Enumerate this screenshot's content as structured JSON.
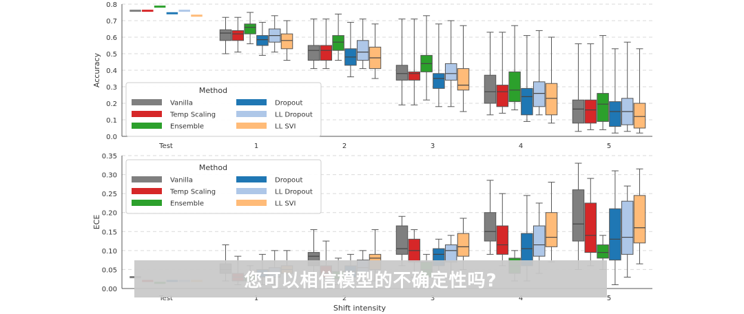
{
  "chart_data": [
    {
      "type": "boxplot",
      "title": "",
      "xlabel": "",
      "ylabel": "Accuracy",
      "ylim": [
        0,
        0.8
      ],
      "yticks": [
        "0.0",
        "0.1",
        "0.2",
        "0.3",
        "0.4",
        "0.5",
        "0.6",
        "0.7",
        "0.8"
      ],
      "categories": [
        "Test",
        "1",
        "2",
        "3",
        "4",
        "5"
      ],
      "grid": "horizontal dashed",
      "legend": {
        "title": "Method",
        "placement": "lower-left"
      },
      "series": [
        {
          "name": "Vanilla",
          "color": "#7f7f7f",
          "test": 0.76,
          "boxes": [
            [
              0.5,
              0.58,
              0.625,
              0.645,
              0.72
            ],
            [
              0.41,
              0.46,
              0.52,
              0.55,
              0.71
            ],
            [
              0.19,
              0.34,
              0.38,
              0.43,
              0.71
            ],
            [
              0.13,
              0.2,
              0.27,
              0.37,
              0.63
            ],
            [
              0.03,
              0.08,
              0.165,
              0.22,
              0.56
            ]
          ]
        },
        {
          "name": "Temp Scaling",
          "color": "#d62728",
          "test": 0.76,
          "boxes": [
            [
              0.51,
              0.58,
              0.62,
              0.64,
              0.72
            ],
            [
              0.41,
              0.46,
              0.52,
              0.55,
              0.71
            ],
            [
              0.19,
              0.34,
              0.38,
              0.39,
              0.71
            ],
            [
              0.14,
              0.18,
              0.27,
              0.31,
              0.63
            ],
            [
              0.04,
              0.08,
              0.16,
              0.22,
              0.56
            ]
          ]
        },
        {
          "name": "Ensemble",
          "color": "#2ca02c",
          "test": 0.785,
          "boxes": [
            [
              0.56,
              0.62,
              0.66,
              0.68,
              0.75
            ],
            [
              0.46,
              0.52,
              0.57,
              0.61,
              0.74
            ],
            [
              0.22,
              0.39,
              0.44,
              0.49,
              0.73
            ],
            [
              0.16,
              0.21,
              0.28,
              0.39,
              0.67
            ],
            [
              0.04,
              0.09,
              0.195,
              0.26,
              0.61
            ]
          ]
        },
        {
          "name": "Dropout",
          "color": "#1f77b4",
          "test": 0.745,
          "boxes": [
            [
              0.49,
              0.55,
              0.585,
              0.61,
              0.69
            ],
            [
              0.36,
              0.43,
              0.48,
              0.53,
              0.69
            ],
            [
              0.18,
              0.29,
              0.35,
              0.38,
              0.68
            ],
            [
              0.09,
              0.13,
              0.24,
              0.29,
              0.61
            ],
            [
              0.02,
              0.06,
              0.15,
              0.21,
              0.53
            ]
          ]
        },
        {
          "name": "LL Dropout",
          "color": "#aec7e8",
          "test": 0.76,
          "boxes": [
            [
              0.51,
              0.57,
              0.61,
              0.65,
              0.73
            ],
            [
              0.41,
              0.46,
              0.51,
              0.58,
              0.71
            ],
            [
              0.18,
              0.34,
              0.38,
              0.44,
              0.7
            ],
            [
              0.13,
              0.18,
              0.26,
              0.33,
              0.64
            ],
            [
              0.03,
              0.07,
              0.15,
              0.23,
              0.57
            ]
          ]
        },
        {
          "name": "LL SVI",
          "color": "#ffbb78",
          "test": 0.73,
          "boxes": [
            [
              0.46,
              0.53,
              0.58,
              0.62,
              0.7
            ],
            [
              0.35,
              0.41,
              0.475,
              0.54,
              0.68
            ],
            [
              0.15,
              0.28,
              0.31,
              0.41,
              0.67
            ],
            [
              0.08,
              0.13,
              0.23,
              0.32,
              0.6
            ],
            [
              0.02,
              0.05,
              0.12,
              0.2,
              0.53
            ]
          ]
        }
      ]
    },
    {
      "type": "boxplot",
      "title": "",
      "xlabel": "Shift intensity",
      "ylabel": "ECE",
      "ylim": [
        0,
        0.35
      ],
      "yticks": [
        "0.00",
        "0.05",
        "0.10",
        "0.15",
        "0.20",
        "0.25",
        "0.30",
        "0.35"
      ],
      "categories": [
        "Test",
        "1",
        "2",
        "3",
        "4",
        "5"
      ],
      "grid": "horizontal dashed",
      "legend": {
        "title": "Method",
        "placement": "upper-left"
      },
      "series": [
        {
          "name": "Vanilla",
          "color": "#7f7f7f",
          "test": 0.03,
          "boxes": [
            [
              0.02,
              0.04,
              0.05,
              0.065,
              0.115
            ],
            [
              0.03,
              0.06,
              0.085,
              0.095,
              0.155
            ],
            [
              0.06,
              0.09,
              0.105,
              0.165,
              0.19
            ],
            [
              0.09,
              0.125,
              0.15,
              0.2,
              0.285
            ],
            [
              0.05,
              0.125,
              0.17,
              0.26,
              0.33
            ]
          ]
        },
        {
          "name": "Temp Scaling",
          "color": "#d62728",
          "test": 0.02,
          "boxes": [
            [
              0.01,
              0.02,
              0.03,
              0.04,
              0.085
            ],
            [
              0.01,
              0.03,
              0.04,
              0.06,
              0.125
            ],
            [
              0.03,
              0.07,
              0.1,
              0.13,
              0.155
            ],
            [
              0.06,
              0.09,
              0.115,
              0.165,
              0.25
            ],
            [
              0.06,
              0.095,
              0.14,
              0.225,
              0.29
            ]
          ]
        },
        {
          "name": "Ensemble",
          "color": "#2ca02c",
          "test": 0.015,
          "boxes": [
            [
              0.01,
              0.02,
              0.025,
              0.035,
              0.06
            ],
            [
              0.01,
              0.025,
              0.035,
              0.045,
              0.08
            ],
            [
              0.01,
              0.03,
              0.05,
              0.07,
              0.09
            ],
            [
              0.02,
              0.04,
              0.06,
              0.08,
              0.1
            ],
            [
              0.05,
              0.08,
              0.095,
              0.115,
              0.14
            ]
          ]
        },
        {
          "name": "Dropout",
          "color": "#1f77b4",
          "test": 0.02,
          "boxes": [
            [
              0.01,
              0.03,
              0.04,
              0.05,
              0.09
            ],
            [
              0.01,
              0.03,
              0.045,
              0.06,
              0.09
            ],
            [
              0.03,
              0.06,
              0.09,
              0.105,
              0.13
            ],
            [
              0.02,
              0.06,
              0.105,
              0.145,
              0.245
            ],
            [
              0.01,
              0.075,
              0.13,
              0.21,
              0.31
            ]
          ]
        },
        {
          "name": "LL Dropout",
          "color": "#aec7e8",
          "test": 0.02,
          "boxes": [
            [
              0.01,
              0.03,
              0.04,
              0.055,
              0.1
            ],
            [
              0.02,
              0.04,
              0.055,
              0.075,
              0.1
            ],
            [
              0.03,
              0.07,
              0.1,
              0.115,
              0.14
            ],
            [
              0.04,
              0.085,
              0.115,
              0.165,
              0.225
            ],
            [
              0.03,
              0.09,
              0.135,
              0.23,
              0.27
            ]
          ]
        },
        {
          "name": "LL SVI",
          "color": "#ffbb78",
          "test": 0.02,
          "boxes": [
            [
              0.01,
              0.04,
              0.05,
              0.06,
              0.1
            ],
            [
              0.02,
              0.05,
              0.08,
              0.09,
              0.155
            ],
            [
              0.05,
              0.085,
              0.11,
              0.145,
              0.185
            ],
            [
              0.07,
              0.11,
              0.135,
              0.2,
              0.28
            ],
            [
              0.065,
              0.12,
              0.16,
              0.245,
              0.315
            ]
          ]
        }
      ]
    }
  ],
  "subtitle": "您可以相信模型的不确定性吗?",
  "colors": {
    "subtitle_bg": "#c8c8c8",
    "subtitle_text": "#ffffff"
  }
}
